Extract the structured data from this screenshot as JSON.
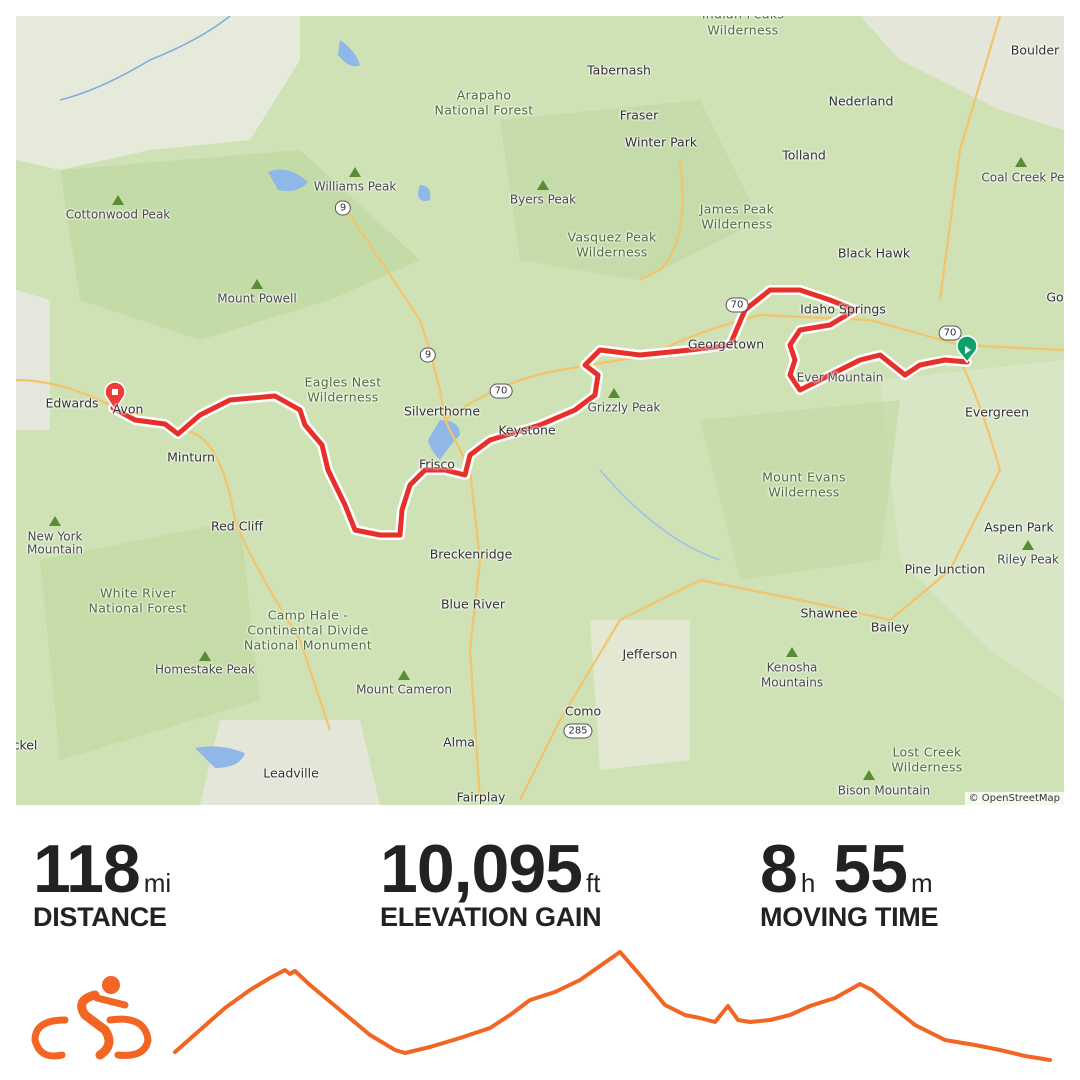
{
  "map": {
    "attribution": "© OpenStreetMap",
    "route_color": "#e8302b",
    "start_marker_color": "#10a06a",
    "end_marker_color": "#ee3b3b",
    "labels": [
      "Indian Peaks",
      "Wilderness",
      "Boulder",
      "Tabernash",
      "Arapaho",
      "National Forest",
      "Nederland",
      "Fraser",
      "Winter Park",
      "Tolland",
      "Coal Creek Peak",
      "Williams Peak",
      "Byers Peak",
      "Cottonwood Peak",
      "James Peak",
      "Wilderness",
      "Vasquez Peak",
      "Wilderness",
      "Black Hawk",
      "Mount Powell",
      "Idaho Springs",
      "Go",
      "Georgetown",
      "Eagles Nest",
      "Wilderness",
      "Silverthorne",
      "Grizzly Peak",
      "Edwards",
      "Avon",
      "Evergreen",
      "Minturn",
      "Frisco",
      "Keystone",
      "Mount Evans",
      "Wilderness",
      "Aspen Park",
      "Red Cliff",
      "New York",
      "Mountain",
      "Breckenridge",
      "Pine Junction",
      "Riley Peak",
      "White River",
      "National Forest",
      "Blue River",
      "Shawnee",
      "Bailey",
      "Camp Hale -",
      "Continental Divide",
      "National Monument",
      "Jefferson",
      "Homestake Peak",
      "Kenosha",
      "Mountains",
      "Mount Cameron",
      "Como",
      "Alma",
      "Leadville",
      "Lost Creek",
      "Wilderness",
      "Bison Mountain",
      "Fairplay",
      "ckel",
      "Ever Mountain"
    ],
    "shields": [
      "9",
      "9",
      "70",
      "70",
      "285",
      "70"
    ]
  },
  "stats": {
    "distance": {
      "value": "118",
      "unit": "mi",
      "label": "DISTANCE"
    },
    "elevation": {
      "value": "10,095",
      "unit": "ft",
      "label": "ELEVATION GAIN"
    },
    "time": {
      "hours": "8",
      "hours_unit": "h",
      "minutes": "55",
      "minutes_unit": "m",
      "label": "MOVING TIME"
    }
  },
  "activity": {
    "type_icon": "cycling-icon",
    "accent_color": "#f26522"
  }
}
